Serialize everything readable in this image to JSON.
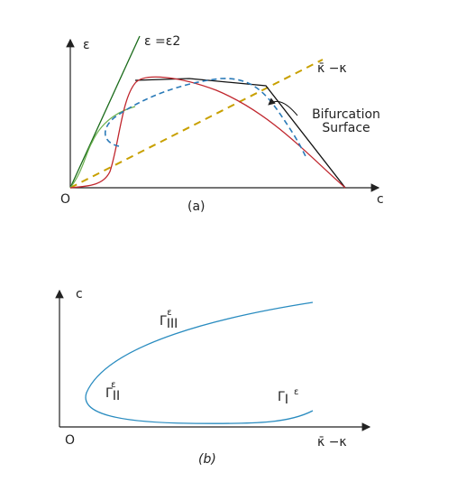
{
  "panel_a": {
    "y_axis_label": "ε",
    "line_label": "ε =ε2",
    "diagonal_label": "κ̄ −κ",
    "annotation": [
      "Bifurcation",
      "Surface"
    ],
    "origin": "O",
    "x_axis_label": "c",
    "caption": "(a)"
  },
  "panel_b": {
    "y_axis_label": "c",
    "origin": "O",
    "x_axis_label": "κ̄ −κ",
    "caption": "(b)",
    "curves": [
      {
        "base": "Γ",
        "sub": "III",
        "sup": "ε"
      },
      {
        "base": "Γ",
        "sub": "II",
        "sup": "ε"
      },
      {
        "base": "Γ",
        "sub": "I",
        "sup": "ε"
      }
    ]
  }
}
